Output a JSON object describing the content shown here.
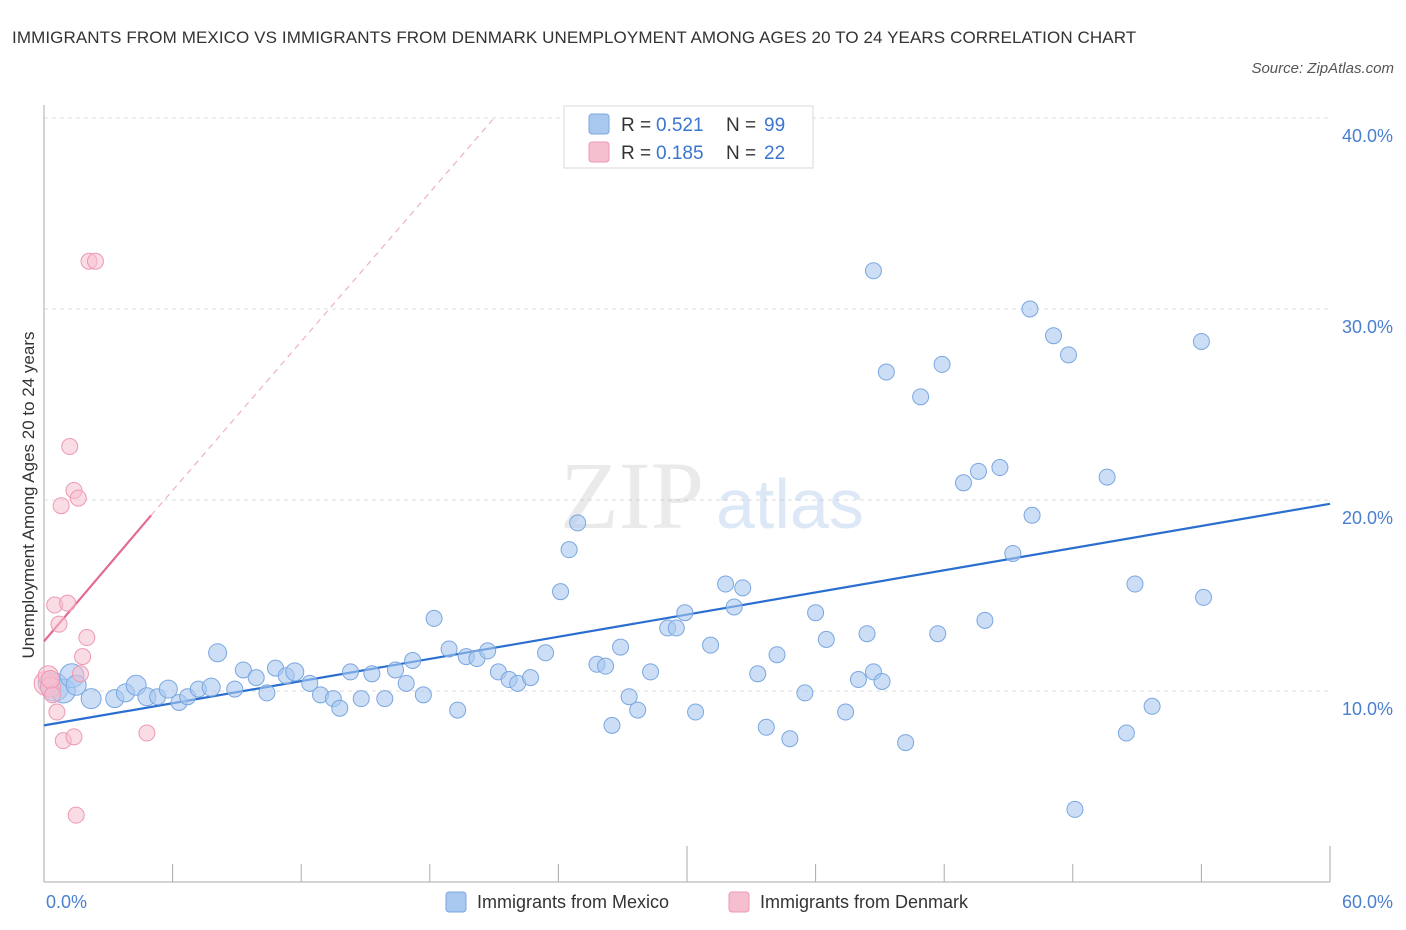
{
  "title": "IMMIGRANTS FROM MEXICO VS IMMIGRANTS FROM DENMARK UNEMPLOYMENT AMONG AGES 20 TO 24 YEARS CORRELATION CHART",
  "source": "Source: ZipAtlas.com",
  "watermark": {
    "zip": "ZIP",
    "atlas": "atlas"
  },
  "colors": {
    "mexico_fill": "#a9c8f0",
    "mexico_stroke": "#7aa7e0",
    "mexico_line": "#2a6fcf",
    "denmark_fill": "#f6bfd0",
    "denmark_stroke": "#ee98b3",
    "denmark_line": "#e46a92",
    "grid": "#dddddd",
    "tick_label": "#4a7fd0"
  },
  "legend": {
    "r_label": "R =",
    "n_label": "N =",
    "mexico": {
      "r": "0.521",
      "n": "99"
    },
    "denmark": {
      "r": "0.185",
      "n": "22"
    }
  },
  "bottom_legend": {
    "mexico": "Immigrants from Mexico",
    "denmark": "Immigrants from Denmark"
  },
  "chart_data": {
    "type": "scatter",
    "title": "IMMIGRANTS FROM MEXICO VS IMMIGRANTS FROM DENMARK UNEMPLOYMENT AMONG AGES 20 TO 24 YEARS CORRELATION CHART",
    "xlabel": "",
    "ylabel": "Unemployment Among Ages 20 to 24 years",
    "xlim": [
      0,
      60
    ],
    "ylim": [
      0,
      40
    ],
    "x_tick_labels": [
      "0.0%",
      "60.0%"
    ],
    "y_ticks": [
      10,
      20,
      30,
      40
    ],
    "y_tick_labels": [
      "10.0%",
      "20.0%",
      "30.0%",
      "40.0%"
    ],
    "grid": true,
    "series": [
      {
        "name": "Immigrants from Mexico",
        "color": "#a9c8f0",
        "trend": {
          "x": [
            0,
            60
          ],
          "y": [
            8.2,
            19.8
          ]
        },
        "points": [
          [
            0.5,
            10.2,
            14
          ],
          [
            0.9,
            10.0,
            12
          ],
          [
            1.3,
            10.8,
            12
          ],
          [
            1.5,
            10.3,
            10
          ],
          [
            2.2,
            9.6,
            10
          ],
          [
            3.3,
            9.6,
            9
          ],
          [
            3.8,
            9.9,
            9
          ],
          [
            4.3,
            10.3,
            10
          ],
          [
            4.8,
            9.7,
            9
          ],
          [
            5.3,
            9.7,
            8
          ],
          [
            5.8,
            10.1,
            9
          ],
          [
            6.3,
            9.4,
            8
          ],
          [
            6.7,
            9.7,
            8
          ],
          [
            7.2,
            10.1,
            8
          ],
          [
            7.8,
            10.2,
            9
          ],
          [
            8.1,
            12.0,
            9
          ],
          [
            8.9,
            10.1,
            8
          ],
          [
            9.3,
            11.1,
            8
          ],
          [
            9.9,
            10.7,
            8
          ],
          [
            10.4,
            9.9,
            8
          ],
          [
            10.8,
            11.2,
            8
          ],
          [
            11.3,
            10.8,
            8
          ],
          [
            11.7,
            11.0,
            9
          ],
          [
            12.4,
            10.4,
            8
          ],
          [
            12.9,
            9.8,
            8
          ],
          [
            13.5,
            9.6,
            8
          ],
          [
            13.8,
            9.1,
            8
          ],
          [
            14.3,
            11.0,
            8
          ],
          [
            14.8,
            9.6,
            8
          ],
          [
            15.3,
            10.9,
            8
          ],
          [
            15.9,
            9.6,
            8
          ],
          [
            16.4,
            11.1,
            8
          ],
          [
            16.9,
            10.4,
            8
          ],
          [
            17.2,
            11.6,
            8
          ],
          [
            17.7,
            9.8,
            8
          ],
          [
            18.2,
            13.8,
            8
          ],
          [
            18.9,
            12.2,
            8
          ],
          [
            19.3,
            9.0,
            8
          ],
          [
            19.7,
            11.8,
            8
          ],
          [
            20.2,
            11.7,
            8
          ],
          [
            20.7,
            12.1,
            8
          ],
          [
            21.2,
            11.0,
            8
          ],
          [
            21.7,
            10.6,
            8
          ],
          [
            22.1,
            10.4,
            8
          ],
          [
            22.7,
            10.7,
            8
          ],
          [
            23.4,
            12.0,
            8
          ],
          [
            24.1,
            15.2,
            8
          ],
          [
            24.5,
            17.4,
            8
          ],
          [
            24.9,
            18.8,
            8
          ],
          [
            25.8,
            11.4,
            8
          ],
          [
            26.2,
            11.3,
            8
          ],
          [
            26.5,
            8.2,
            8
          ],
          [
            26.9,
            12.3,
            8
          ],
          [
            27.3,
            9.7,
            8
          ],
          [
            27.7,
            9.0,
            8
          ],
          [
            28.3,
            11.0,
            8
          ],
          [
            29.1,
            13.3,
            8
          ],
          [
            29.5,
            13.3,
            8
          ],
          [
            29.9,
            14.1,
            8
          ],
          [
            30.4,
            8.9,
            8
          ],
          [
            31.1,
            12.4,
            8
          ],
          [
            31.8,
            15.6,
            8
          ],
          [
            32.2,
            14.4,
            8
          ],
          [
            32.6,
            15.4,
            8
          ],
          [
            33.3,
            10.9,
            8
          ],
          [
            33.7,
            8.1,
            8
          ],
          [
            34.2,
            11.9,
            8
          ],
          [
            34.8,
            7.5,
            8
          ],
          [
            35.5,
            9.9,
            8
          ],
          [
            36.0,
            14.1,
            8
          ],
          [
            36.5,
            12.7,
            8
          ],
          [
            37.4,
            8.9,
            8
          ],
          [
            38.0,
            10.6,
            8
          ],
          [
            38.7,
            11.0,
            8
          ],
          [
            39.1,
            10.5,
            8
          ],
          [
            38.4,
            13.0,
            8
          ],
          [
            38.7,
            32.0,
            8
          ],
          [
            39.3,
            26.7,
            8
          ],
          [
            40.2,
            7.3,
            8
          ],
          [
            40.9,
            25.4,
            8
          ],
          [
            41.7,
            13.0,
            8
          ],
          [
            41.9,
            27.1,
            8
          ],
          [
            42.9,
            20.9,
            8
          ],
          [
            43.6,
            21.5,
            8
          ],
          [
            43.9,
            13.7,
            8
          ],
          [
            44.6,
            21.7,
            8
          ],
          [
            45.2,
            17.2,
            8
          ],
          [
            46.0,
            30.0,
            8
          ],
          [
            46.1,
            19.2,
            8
          ],
          [
            47.1,
            28.6,
            8
          ],
          [
            47.8,
            27.6,
            8
          ],
          [
            48.1,
            3.8,
            8
          ],
          [
            49.6,
            21.2,
            8
          ],
          [
            50.5,
            7.8,
            8
          ],
          [
            50.9,
            15.6,
            8
          ],
          [
            51.7,
            9.2,
            8
          ],
          [
            54.0,
            28.3,
            8
          ],
          [
            54.1,
            14.9,
            8
          ],
          [
            0.2,
            10.4,
            10
          ]
        ]
      },
      {
        "name": "Immigrants from Denmark",
        "color": "#f6bfd0",
        "trend": {
          "x": [
            0,
            5.0
          ],
          "y": [
            12.6,
            19.2
          ]
        },
        "trend_extension": {
          "x": [
            5.0,
            21.0
          ],
          "y": [
            19.2,
            40.0
          ]
        },
        "points": [
          [
            0.1,
            10.4,
            12
          ],
          [
            0.2,
            10.8,
            10
          ],
          [
            0.3,
            10.2,
            10
          ],
          [
            0.3,
            10.6,
            9
          ],
          [
            0.4,
            9.8,
            8
          ],
          [
            0.5,
            14.5,
            8
          ],
          [
            0.6,
            8.9,
            8
          ],
          [
            0.7,
            13.5,
            8
          ],
          [
            0.8,
            19.7,
            8
          ],
          [
            0.9,
            7.4,
            8
          ],
          [
            1.1,
            14.6,
            8
          ],
          [
            1.2,
            22.8,
            8
          ],
          [
            1.4,
            7.6,
            8
          ],
          [
            1.4,
            20.5,
            8
          ],
          [
            1.5,
            3.5,
            8
          ],
          [
            1.6,
            20.1,
            8
          ],
          [
            1.7,
            10.9,
            8
          ],
          [
            1.8,
            11.8,
            8
          ],
          [
            2.0,
            12.8,
            8
          ],
          [
            2.1,
            32.5,
            8
          ],
          [
            2.4,
            32.5,
            8
          ],
          [
            4.8,
            7.8,
            8
          ]
        ]
      }
    ]
  }
}
